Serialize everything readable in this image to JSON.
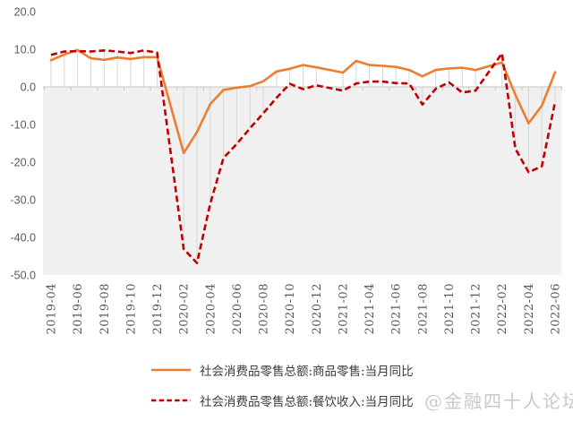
{
  "watermark": "@金融四十人论坛",
  "legend": {
    "item1_label": "社会消费品零售总额:商品零售:当月同比",
    "item2_label": "社会消费品零售总额:餐饮收入:当月同比"
  },
  "colors": {
    "goods_line": "#ED7D31",
    "catering_line": "#C00000",
    "axis_text": "#595959",
    "zero_axis": "#c6c6c6",
    "dropline": "#d6d6d6",
    "negative_area_fill": "#f0f0f0",
    "watermark_text": "#c9c9c9"
  },
  "chart_data": {
    "type": "line",
    "title": "",
    "xlabel": "",
    "ylabel": "",
    "ylim": [
      -50,
      20
    ],
    "y_ticks": [
      20,
      10,
      0,
      -10,
      -20,
      -30,
      -40,
      -50
    ],
    "y_tick_labels": [
      "20.0",
      "10.0",
      "0.0",
      "-10.0",
      "-20.0",
      "-30.0",
      "-40.0",
      "-50.0"
    ],
    "grid": "zero axis only; vertical droplines from zero axis to outermost series each month",
    "legend_position": "bottom",
    "x": [
      "2019-04",
      "2019-05",
      "2019-06",
      "2019-07",
      "2019-08",
      "2019-09",
      "2019-10",
      "2019-11",
      "2019-12",
      "2020-01",
      "2020-02",
      "2020-03",
      "2020-04",
      "2020-05",
      "2020-06",
      "2020-07",
      "2020-08",
      "2020-09",
      "2020-10",
      "2020-11",
      "2020-12",
      "2021-01",
      "2021-02",
      "2021-03",
      "2021-04",
      "2021-05",
      "2021-06",
      "2021-07",
      "2021-08",
      "2021-09",
      "2021-10",
      "2021-11",
      "2021-12",
      "2022-01",
      "2022-02",
      "2022-03",
      "2022-04",
      "2022-05",
      "2022-06"
    ],
    "x_tick_labels": [
      "2019-04",
      "2019-06",
      "2019-08",
      "2019-10",
      "2019-12",
      "2020-02",
      "2020-04",
      "2020-06",
      "2020-08",
      "2020-10",
      "2020-12",
      "2021-02",
      "2021-04",
      "2021-06",
      "2021-08",
      "2021-10",
      "2021-12",
      "2022-02",
      "2022-04",
      "2022-06"
    ],
    "series": [
      {
        "name": "社会消费品零售总额:商品零售:当月同比",
        "style": "solid",
        "color": "#ED7D31",
        "values": [
          7.1,
          8.6,
          9.8,
          7.6,
          7.2,
          7.8,
          7.4,
          7.9,
          7.9,
          null,
          -17.6,
          -12.0,
          -4.6,
          -0.8,
          -0.2,
          0.2,
          1.5,
          4.1,
          4.8,
          5.8,
          5.2,
          null,
          3.8,
          6.9,
          5.8,
          5.6,
          5.3,
          4.5,
          2.8,
          4.5,
          4.9,
          5.1,
          4.5,
          null,
          6.5,
          -2.1,
          -9.7,
          -5.0,
          3.9
        ]
      },
      {
        "name": "社会消费品零售总额:餐饮收入:当月同比",
        "style": "dashed",
        "color": "#C00000",
        "values": [
          8.5,
          9.4,
          9.5,
          9.4,
          9.7,
          9.4,
          9.0,
          9.7,
          9.1,
          null,
          -43.1,
          -46.8,
          -31.1,
          -18.9,
          -15.2,
          -11.0,
          -7.0,
          -2.9,
          0.8,
          -0.6,
          0.4,
          null,
          -1.0,
          0.9,
          1.4,
          1.4,
          1.0,
          0.9,
          -4.7,
          -0.5,
          1.2,
          -1.5,
          -1.0,
          null,
          8.9,
          -16.4,
          -22.7,
          -21.1,
          -4.0
        ]
      }
    ]
  }
}
